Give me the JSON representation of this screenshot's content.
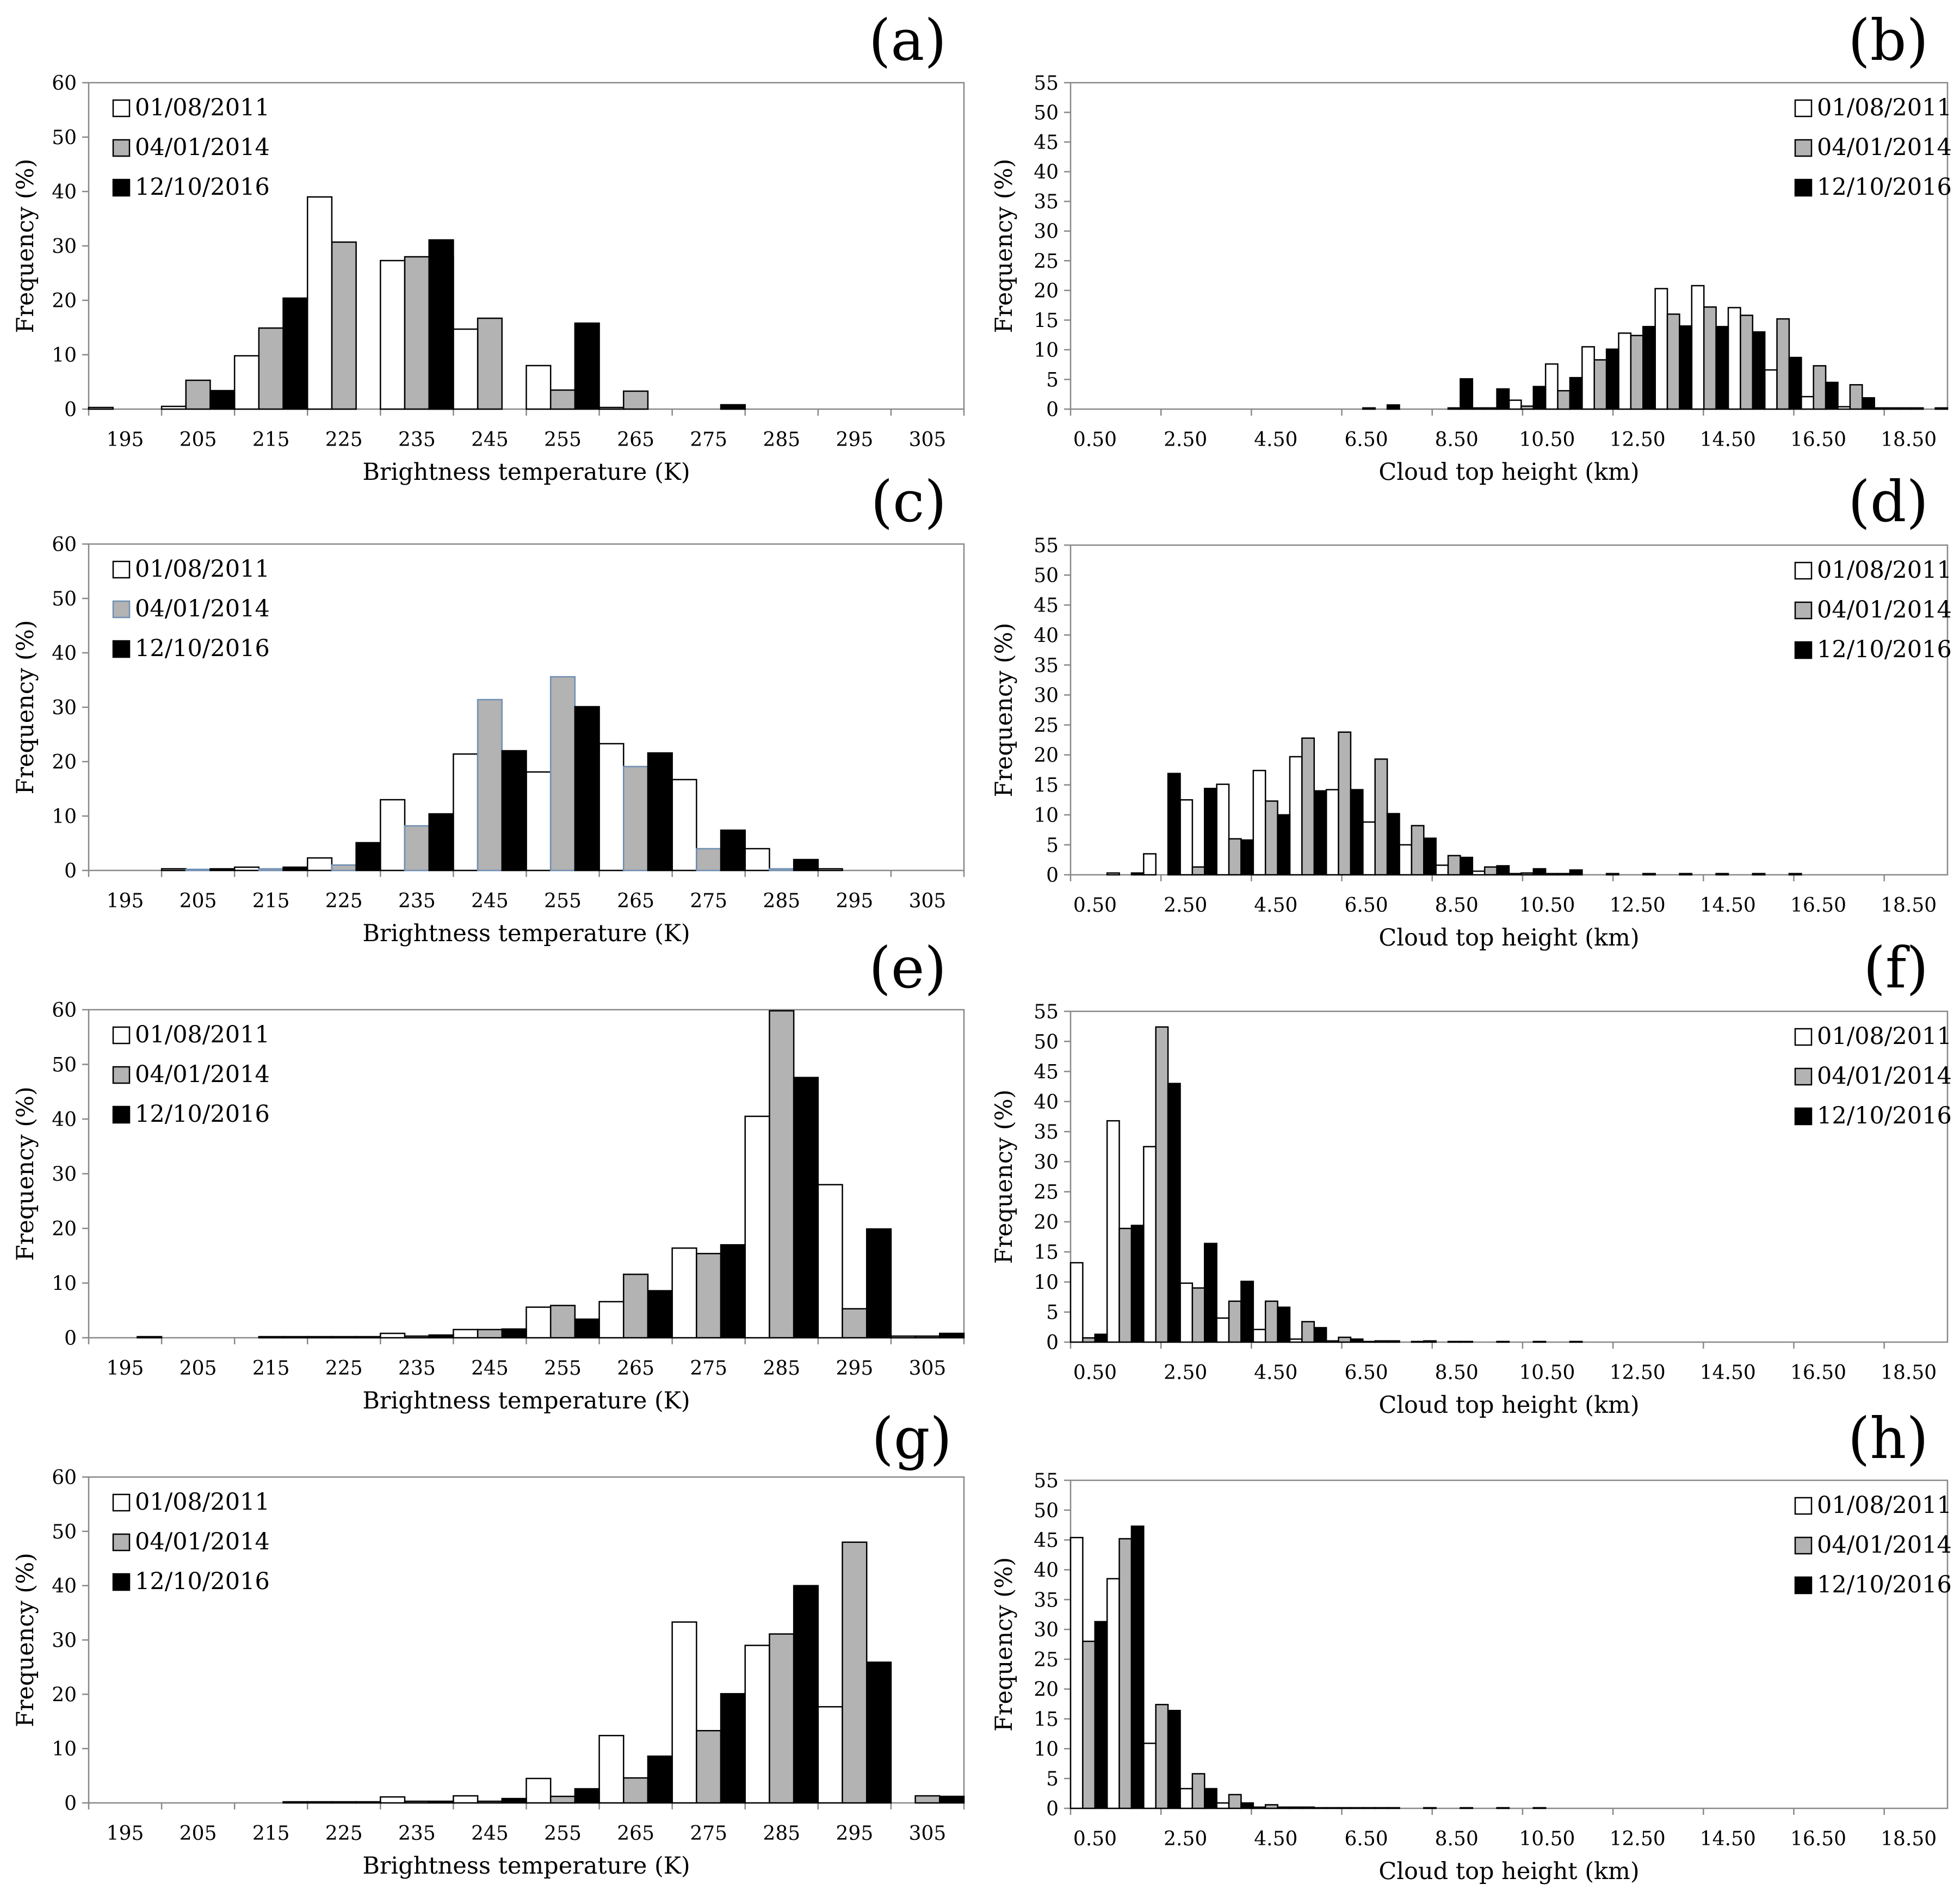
{
  "colors": {
    "white": "#ffffff",
    "gray": "#b3b3b3",
    "black": "#000000",
    "gray_edge_c": "#6f8fb3",
    "axis": "#888888"
  },
  "chart_data": [
    {
      "id": "a",
      "panel_label": "(a)",
      "type": "bar",
      "kind": "bt",
      "xlabel": "Brightness temperature (K)",
      "ylabel": "Frequency (%)",
      "ylim": [
        0,
        60
      ],
      "yticks": [
        "0",
        "10",
        "20",
        "30",
        "40",
        "50",
        "60"
      ],
      "tick_labels": [
        "195",
        "205",
        "215",
        "225",
        "235",
        "245",
        "255",
        "265",
        "275",
        "285",
        "295",
        "305"
      ],
      "legend": [
        "01/08/2011",
        "04/01/2014",
        "12/10/2016"
      ],
      "series": [
        {
          "name": "01/08/2011",
          "values": [
            0.3,
            0,
            9.8,
            0,
            27.3,
            0,
            8.0,
            0.3,
            0,
            0,
            0,
            0
          ]
        },
        {
          "name": "04/01/2014",
          "values": [
            0,
            5.3,
            0,
            30.7,
            0,
            16.7,
            0,
            3.3,
            0,
            0,
            0,
            0
          ]
        },
        {
          "name": "12/10/2016",
          "values": [
            0,
            0,
            20.4,
            0,
            31.1,
            0,
            15.8,
            0,
            0.8,
            0,
            0,
            0
          ]
        }
      ],
      "extra": [
        {
          "series": 0,
          "values": [
            0,
            0.5,
            0,
            39.0,
            0,
            14.7,
            0,
            0,
            0,
            0,
            0,
            0
          ]
        },
        {
          "series": 1,
          "values": [
            0,
            0,
            14.9,
            0,
            28.0,
            0,
            3.5,
            0,
            0,
            0,
            0,
            0
          ]
        },
        {
          "series": 2,
          "values": [
            0,
            3.4,
            0,
            0,
            28.0,
            0,
            0,
            0,
            0,
            0,
            0,
            0
          ]
        }
      ]
    },
    {
      "id": "b",
      "panel_label": "(b)",
      "type": "bar",
      "kind": "cth",
      "xlabel": "Cloud top height (km)",
      "ylabel": "Frequency (%)",
      "ylim": [
        0,
        55
      ],
      "yticks": [
        "0",
        "5",
        "10",
        "15",
        "20",
        "25",
        "30",
        "35",
        "40",
        "45",
        "50",
        "55"
      ],
      "tick_labels": [
        "0.50",
        "2.50",
        "4.50",
        "6.50",
        "8.50",
        "10.50",
        "12.50",
        "14.50",
        "16.50",
        "18.50"
      ],
      "legend": [
        "01/08/2011",
        "04/01/2014",
        "12/10/2016"
      ],
      "series": [
        {
          "name": "01/08/2011",
          "values": [
            0,
            0,
            0,
            0,
            0,
            0,
            0,
            0,
            0.2,
            0,
            0,
            0.2,
            1.5,
            7.6,
            10.5,
            12.8,
            20.3,
            20.8,
            17.1,
            6.6,
            2.1,
            0.4,
            0.2,
            0.2
          ]
        },
        {
          "name": "04/01/2014",
          "values": [
            0,
            0,
            0,
            0,
            0,
            0,
            0,
            0,
            0,
            0,
            0.2,
            0.2,
            0.5,
            3.1,
            8.3,
            12.4,
            16.0,
            17.2,
            15.8,
            15.2,
            7.3,
            4.1,
            0.2,
            0
          ]
        },
        {
          "name": "12/10/2016",
          "values": [
            0,
            0,
            0,
            0,
            0,
            0,
            0,
            0,
            0.7,
            0,
            5.1,
            3.4,
            3.8,
            5.3,
            10.1,
            13.9,
            14.0,
            13.9,
            13.0,
            8.7,
            4.5,
            1.9,
            0.2,
            0.2
          ]
        }
      ]
    },
    {
      "id": "c",
      "panel_label": "(c)",
      "type": "bar",
      "kind": "bt",
      "xlabel": "Brightness temperature (K)",
      "ylabel": "Frequency (%)",
      "ylim": [
        0,
        60
      ],
      "yticks": [
        "0",
        "10",
        "20",
        "30",
        "40",
        "50",
        "60"
      ],
      "tick_labels": [
        "195",
        "205",
        "215",
        "225",
        "235",
        "245",
        "255",
        "265",
        "275",
        "285",
        "295",
        "305"
      ],
      "legend": [
        "01/08/2011",
        "04/01/2014",
        "12/10/2016"
      ],
      "series": [
        {
          "name": "01/08/2011",
          "values": [
            0,
            0.3,
            0.6,
            2.3,
            13.0,
            21.4,
            18.1,
            23.3,
            16.7,
            4.0,
            0.3,
            0
          ]
        },
        {
          "name": "04/01/2014",
          "values": [
            0,
            0.2,
            0.3,
            1.0,
            8.2,
            31.4,
            35.6,
            19.1,
            4.0,
            0.3,
            0,
            0
          ]
        },
        {
          "name": "12/10/2016",
          "values": [
            0,
            0.3,
            0.6,
            5.1,
            10.4,
            22.0,
            30.1,
            21.6,
            7.4,
            2.0,
            0,
            0
          ]
        }
      ]
    },
    {
      "id": "d",
      "panel_label": "(d)",
      "type": "bar",
      "kind": "cth",
      "xlabel": "Cloud top height (km)",
      "ylabel": "Frequency (%)",
      "ylim": [
        0,
        55
      ],
      "yticks": [
        "0",
        "5",
        "10",
        "15",
        "20",
        "25",
        "30",
        "35",
        "40",
        "45",
        "50",
        "55"
      ],
      "tick_labels": [
        "0.50",
        "2.50",
        "4.50",
        "6.50",
        "8.50",
        "10.50",
        "12.50",
        "14.50",
        "16.50",
        "18.50"
      ],
      "legend": [
        "01/08/2011",
        "04/01/2014",
        "12/10/2016"
      ],
      "series": [
        {
          "name": "01/08/2011",
          "values": [
            0,
            0.3,
            3.5,
            12.5,
            15.1,
            17.4,
            19.7,
            14.2,
            8.8,
            5.0,
            1.6,
            0.6,
            0.2,
            0.2,
            0,
            0,
            0,
            0,
            0,
            0,
            0,
            0,
            0,
            0
          ]
        },
        {
          "name": "04/01/2014",
          "values": [
            0,
            0,
            0,
            1.3,
            6.0,
            12.3,
            22.8,
            23.8,
            19.3,
            8.2,
            3.2,
            1.3,
            0.3,
            0.2,
            0,
            0,
            0,
            0,
            0,
            0,
            0,
            0,
            0,
            0
          ]
        },
        {
          "name": "12/10/2016",
          "values": [
            0,
            0.3,
            16.9,
            14.4,
            5.8,
            10.0,
            14.0,
            14.2,
            10.2,
            6.1,
            2.9,
            1.5,
            1.0,
            0.8,
            0.2,
            0.2,
            0.2,
            0.2,
            0.2,
            0.2,
            0,
            0,
            0,
            0
          ]
        }
      ]
    },
    {
      "id": "e",
      "panel_label": "(e)",
      "type": "bar",
      "kind": "bt",
      "xlabel": "Brightness temperature (K)",
      "ylabel": "Frequency (%)",
      "ylim": [
        0,
        60
      ],
      "yticks": [
        "0",
        "10",
        "20",
        "30",
        "40",
        "50",
        "60"
      ],
      "tick_labels": [
        "195",
        "205",
        "215",
        "225",
        "235",
        "245",
        "255",
        "265",
        "275",
        "285",
        "295",
        "305"
      ],
      "legend": [
        "01/08/2011",
        "04/01/2014",
        "12/10/2016"
      ],
      "series": [
        {
          "name": "01/08/2011",
          "values": [
            0,
            0,
            0,
            0.2,
            0.8,
            1.5,
            5.6,
            6.6,
            16.4,
            40.5,
            28.0,
            0.3
          ]
        },
        {
          "name": "04/01/2014",
          "values": [
            0,
            0,
            0.2,
            0.2,
            0.3,
            1.5,
            5.9,
            11.6,
            15.4,
            59.8,
            5.3,
            0.3
          ]
        },
        {
          "name": "12/10/2016",
          "values": [
            0.2,
            0,
            0.2,
            0.2,
            0.5,
            1.6,
            3.4,
            8.6,
            17.0,
            47.6,
            19.9,
            0.8
          ]
        }
      ]
    },
    {
      "id": "f",
      "panel_label": "(f)",
      "type": "bar",
      "kind": "cth",
      "xlabel": "Cloud top height (km)",
      "ylabel": "Frequency (%)",
      "ylim": [
        0,
        55
      ],
      "yticks": [
        "0",
        "5",
        "10",
        "15",
        "20",
        "25",
        "30",
        "35",
        "40",
        "45",
        "50",
        "55"
      ],
      "tick_labels": [
        "0.50",
        "2.50",
        "4.50",
        "6.50",
        "8.50",
        "10.50",
        "12.50",
        "14.50",
        "16.50",
        "18.50"
      ],
      "legend": [
        "01/08/2011",
        "04/01/2014",
        "12/10/2016"
      ],
      "series": [
        {
          "name": "01/08/2011",
          "values": [
            13.2,
            36.8,
            32.5,
            9.8,
            4.0,
            2.1,
            0.5,
            0.2,
            0.1,
            0,
            0,
            0,
            0,
            0,
            0,
            0,
            0,
            0,
            0,
            0,
            0,
            0,
            0,
            0
          ]
        },
        {
          "name": "04/01/2014",
          "values": [
            0.7,
            18.9,
            52.4,
            9.0,
            6.8,
            6.8,
            3.4,
            0.8,
            0.2,
            0.1,
            0.1,
            0,
            0,
            0,
            0,
            0,
            0,
            0,
            0,
            0,
            0,
            0,
            0,
            0
          ]
        },
        {
          "name": "12/10/2016",
          "values": [
            1.3,
            19.4,
            43.0,
            16.4,
            10.1,
            5.8,
            2.4,
            0.5,
            0.2,
            0.2,
            0.1,
            0.1,
            0.1,
            0.1,
            0,
            0,
            0,
            0,
            0,
            0,
            0,
            0,
            0,
            0
          ]
        }
      ]
    },
    {
      "id": "g",
      "panel_label": "(g)",
      "type": "bar",
      "kind": "bt",
      "xlabel": "Brightness temperature (K)",
      "ylabel": "Frequency (%)",
      "ylim": [
        0,
        60
      ],
      "yticks": [
        "0",
        "10",
        "20",
        "30",
        "40",
        "50",
        "60"
      ],
      "tick_labels": [
        "195",
        "205",
        "215",
        "225",
        "235",
        "245",
        "255",
        "265",
        "275",
        "285",
        "295",
        "305"
      ],
      "legend": [
        "01/08/2011",
        "04/01/2014",
        "12/10/2016"
      ],
      "series": [
        {
          "name": "01/08/2011",
          "values": [
            0,
            0,
            0,
            0.2,
            1.1,
            1.3,
            4.5,
            12.4,
            33.3,
            29.0,
            17.7,
            0
          ]
        },
        {
          "name": "04/01/2014",
          "values": [
            0,
            0,
            0,
            0.2,
            0.3,
            0.3,
            1.2,
            4.6,
            13.3,
            31.1,
            48.0,
            1.3
          ]
        },
        {
          "name": "12/10/2016",
          "values": [
            0,
            0,
            0.2,
            0.2,
            0.3,
            0.8,
            2.6,
            8.6,
            20.1,
            40.0,
            25.9,
            1.2
          ]
        }
      ]
    },
    {
      "id": "h",
      "panel_label": "(h)",
      "type": "bar",
      "kind": "cth",
      "xlabel": "Cloud top height (km)",
      "ylabel": "Frequency (%)",
      "ylim": [
        0,
        55
      ],
      "yticks": [
        "0",
        "5",
        "10",
        "15",
        "20",
        "25",
        "30",
        "35",
        "40",
        "45",
        "50",
        "55"
      ],
      "tick_labels": [
        "0.50",
        "2.50",
        "4.50",
        "6.50",
        "8.50",
        "10.50",
        "12.50",
        "14.50",
        "16.50",
        "18.50"
      ],
      "legend": [
        "01/08/2011",
        "04/01/2014",
        "12/10/2016"
      ],
      "series": [
        {
          "name": "01/08/2011",
          "values": [
            45.4,
            38.5,
            10.9,
            3.3,
            0.9,
            0.2,
            0.2,
            0.1,
            0.1,
            0,
            0,
            0,
            0,
            0,
            0,
            0,
            0,
            0,
            0,
            0,
            0,
            0,
            0,
            0
          ]
        },
        {
          "name": "04/01/2014",
          "values": [
            28.0,
            45.2,
            17.4,
            5.8,
            2.3,
            0.6,
            0.2,
            0.1,
            0.1,
            0,
            0,
            0,
            0,
            0,
            0,
            0,
            0,
            0,
            0,
            0,
            0,
            0,
            0,
            0
          ]
        },
        {
          "name": "12/10/2016",
          "values": [
            31.3,
            47.3,
            16.4,
            3.3,
            0.9,
            0.2,
            0.1,
            0.1,
            0.1,
            0.1,
            0.1,
            0.1,
            0.1,
            0,
            0,
            0,
            0,
            0,
            0,
            0,
            0,
            0,
            0,
            0
          ]
        }
      ]
    }
  ]
}
